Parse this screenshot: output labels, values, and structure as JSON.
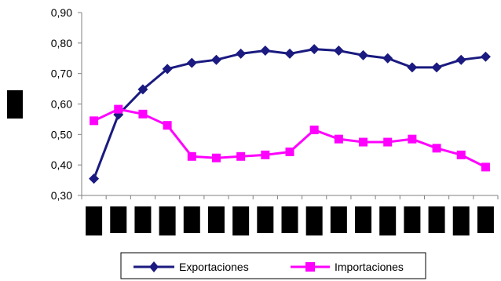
{
  "chart_data": {
    "type": "line",
    "title": "",
    "xlabel": "",
    "ylabel": "",
    "ylim": [
      0.3,
      0.9
    ],
    "y_ticks": [
      "0,30",
      "0,40",
      "0,50",
      "0,60",
      "0,70",
      "0,80",
      "0,90"
    ],
    "grid": false,
    "legend_position": "bottom",
    "point_count": 17,
    "series": [
      {
        "name": "Exportaciones",
        "color": "#1a1a80",
        "marker": "diamond",
        "values": [
          0.355,
          0.565,
          0.648,
          0.715,
          0.735,
          0.745,
          0.765,
          0.775,
          0.765,
          0.78,
          0.775,
          0.76,
          0.75,
          0.72,
          0.72,
          0.745,
          0.755
        ]
      },
      {
        "name": "Importaciones",
        "color": "#ff00ff",
        "marker": "square",
        "values": [
          0.545,
          0.583,
          0.567,
          0.53,
          0.428,
          0.423,
          0.428,
          0.433,
          0.443,
          0.515,
          0.485,
          0.475,
          0.475,
          0.485,
          0.455,
          0.433,
          0.393
        ]
      }
    ]
  }
}
